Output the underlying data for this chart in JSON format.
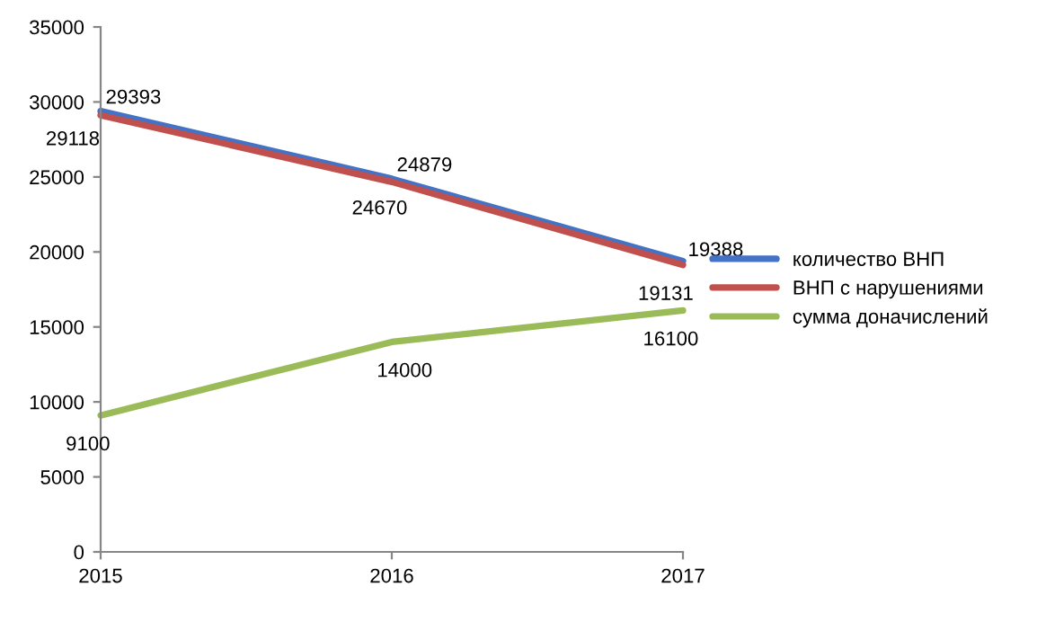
{
  "chart_data": {
    "type": "line",
    "x": [
      2015,
      2016,
      2017
    ],
    "series": [
      {
        "name": "количество ВНП",
        "color": "#4472c4",
        "values": [
          29393,
          24879,
          19388
        ]
      },
      {
        "name": "ВНП с нарушениями",
        "color": "#c0504d",
        "values": [
          29118,
          24670,
          19131
        ]
      },
      {
        "name": "сумма доначислений",
        "color": "#9bbb59",
        "values": [
          9100,
          14000,
          16100
        ]
      }
    ],
    "xlim": [
      2015,
      2017
    ],
    "xticks": [
      2015,
      2016,
      2017
    ],
    "ylim": [
      0,
      35000
    ],
    "yticks": [
      0,
      5000,
      10000,
      15000,
      20000,
      25000,
      30000,
      35000
    ],
    "grid": false,
    "legend": "right",
    "marker": "none",
    "line_style": "solid",
    "data_labels": true
  }
}
